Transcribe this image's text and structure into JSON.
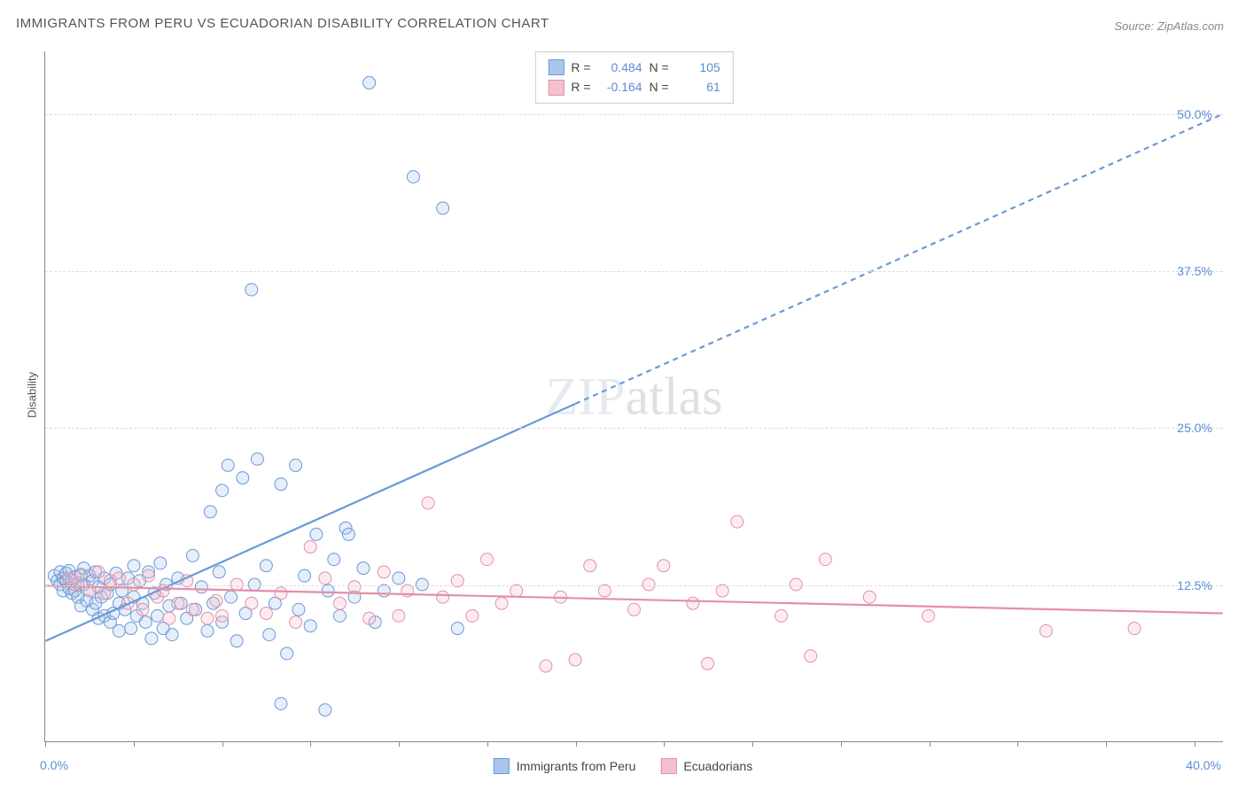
{
  "title": "IMMIGRANTS FROM PERU VS ECUADORIAN DISABILITY CORRELATION CHART",
  "source": "Source: ZipAtlas.com",
  "watermark": {
    "zip": "ZIP",
    "atlas": "atlas"
  },
  "y_axis": {
    "label": "Disability"
  },
  "chart": {
    "type": "scatter",
    "background_color": "#ffffff",
    "grid_color": "#dddddd",
    "axis_color": "#888888",
    "tick_label_color": "#5b8dd6",
    "tick_label_fontsize": 14,
    "xlim": [
      0,
      40
    ],
    "ylim": [
      0,
      55
    ],
    "x_origin_label": "0.0%",
    "x_max_label": "40.0%",
    "x_tick_positions": [
      0,
      3,
      6,
      9,
      12,
      15,
      18,
      21,
      24,
      27,
      30,
      33,
      36,
      39
    ],
    "y_ticks": [
      {
        "value": 12.5,
        "label": "12.5%"
      },
      {
        "value": 25.0,
        "label": "25.0%"
      },
      {
        "value": 37.5,
        "label": "37.5%"
      },
      {
        "value": 50.0,
        "label": "50.0%"
      }
    ],
    "marker_radius": 7,
    "marker_stroke_width": 1,
    "marker_fill_opacity": 0.3,
    "trend_line_width": 2.2,
    "trend_dash_pattern": "6 5"
  },
  "series": [
    {
      "id": "peru",
      "label": "Immigrants from Peru",
      "color_stroke": "#6a9ad6",
      "color_fill": "#a9c6ea",
      "R": "0.484",
      "N": "105",
      "trend": {
        "x1": 0,
        "y1": 8.0,
        "x2": 40,
        "y2": 50.0,
        "solid_until_x": 18
      },
      "points": [
        [
          0.3,
          13.2
        ],
        [
          0.4,
          12.8
        ],
        [
          0.5,
          13.5
        ],
        [
          0.5,
          12.5
        ],
        [
          0.6,
          13.0
        ],
        [
          0.6,
          12.0
        ],
        [
          0.7,
          12.8
        ],
        [
          0.7,
          13.4
        ],
        [
          0.8,
          12.2
        ],
        [
          0.8,
          13.6
        ],
        [
          0.9,
          11.8
        ],
        [
          0.9,
          12.9
        ],
        [
          1.0,
          13.1
        ],
        [
          1.0,
          12.0
        ],
        [
          1.1,
          12.6
        ],
        [
          1.1,
          11.5
        ],
        [
          1.2,
          13.3
        ],
        [
          1.2,
          10.8
        ],
        [
          1.3,
          12.5
        ],
        [
          1.3,
          13.8
        ],
        [
          1.4,
          11.2
        ],
        [
          1.5,
          12.0
        ],
        [
          1.5,
          13.2
        ],
        [
          1.6,
          10.5
        ],
        [
          1.6,
          12.8
        ],
        [
          1.7,
          11.0
        ],
        [
          1.7,
          13.5
        ],
        [
          1.8,
          9.8
        ],
        [
          1.8,
          12.3
        ],
        [
          1.9,
          11.5
        ],
        [
          2.0,
          10.0
        ],
        [
          2.0,
          13.0
        ],
        [
          2.1,
          11.8
        ],
        [
          2.2,
          9.5
        ],
        [
          2.2,
          12.5
        ],
        [
          2.3,
          10.2
        ],
        [
          2.4,
          13.4
        ],
        [
          2.5,
          11.0
        ],
        [
          2.5,
          8.8
        ],
        [
          2.6,
          12.0
        ],
        [
          2.7,
          10.5
        ],
        [
          2.8,
          13.0
        ],
        [
          2.9,
          9.0
        ],
        [
          3.0,
          11.5
        ],
        [
          3.0,
          14.0
        ],
        [
          3.1,
          10.0
        ],
        [
          3.2,
          12.8
        ],
        [
          3.3,
          11.0
        ],
        [
          3.4,
          9.5
        ],
        [
          3.5,
          13.5
        ],
        [
          3.6,
          8.2
        ],
        [
          3.7,
          11.8
        ],
        [
          3.8,
          10.0
        ],
        [
          3.9,
          14.2
        ],
        [
          4.0,
          9.0
        ],
        [
          4.1,
          12.5
        ],
        [
          4.2,
          10.8
        ],
        [
          4.3,
          8.5
        ],
        [
          4.5,
          13.0
        ],
        [
          4.6,
          11.0
        ],
        [
          4.8,
          9.8
        ],
        [
          5.0,
          14.8
        ],
        [
          5.1,
          10.5
        ],
        [
          5.3,
          12.3
        ],
        [
          5.5,
          8.8
        ],
        [
          5.6,
          18.3
        ],
        [
          5.7,
          11.0
        ],
        [
          5.9,
          13.5
        ],
        [
          6.0,
          20.0
        ],
        [
          6.0,
          9.5
        ],
        [
          6.2,
          22.0
        ],
        [
          6.3,
          11.5
        ],
        [
          6.5,
          8.0
        ],
        [
          6.7,
          21.0
        ],
        [
          6.8,
          10.2
        ],
        [
          7.0,
          36.0
        ],
        [
          7.1,
          12.5
        ],
        [
          7.2,
          22.5
        ],
        [
          7.5,
          14.0
        ],
        [
          7.6,
          8.5
        ],
        [
          7.8,
          11.0
        ],
        [
          8.0,
          20.5
        ],
        [
          8.0,
          3.0
        ],
        [
          8.2,
          7.0
        ],
        [
          8.5,
          22.0
        ],
        [
          8.6,
          10.5
        ],
        [
          8.8,
          13.2
        ],
        [
          9.0,
          9.2
        ],
        [
          9.2,
          16.5
        ],
        [
          9.5,
          2.5
        ],
        [
          9.6,
          12.0
        ],
        [
          9.8,
          14.5
        ],
        [
          10.0,
          10.0
        ],
        [
          10.2,
          17.0
        ],
        [
          10.3,
          16.5
        ],
        [
          10.5,
          11.5
        ],
        [
          10.8,
          13.8
        ],
        [
          11.0,
          52.5
        ],
        [
          11.2,
          9.5
        ],
        [
          11.5,
          12.0
        ],
        [
          12.0,
          13.0
        ],
        [
          12.5,
          45.0
        ],
        [
          12.8,
          12.5
        ],
        [
          13.5,
          42.5
        ],
        [
          14.0,
          9.0
        ]
      ]
    },
    {
      "id": "ecuador",
      "label": "Ecuadorians",
      "color_stroke": "#e38fa8",
      "color_fill": "#f4c0ce",
      "R": "-0.164",
      "N": "61",
      "trend": {
        "x1": 0,
        "y1": 12.4,
        "x2": 40,
        "y2": 10.2,
        "solid_until_x": 40
      },
      "points": [
        [
          0.8,
          13.0
        ],
        [
          1.0,
          12.5
        ],
        [
          1.2,
          13.2
        ],
        [
          1.5,
          12.0
        ],
        [
          1.8,
          13.5
        ],
        [
          2.0,
          11.8
        ],
        [
          2.2,
          12.8
        ],
        [
          2.5,
          13.0
        ],
        [
          2.8,
          11.0
        ],
        [
          3.0,
          12.5
        ],
        [
          3.3,
          10.5
        ],
        [
          3.5,
          13.2
        ],
        [
          3.8,
          11.5
        ],
        [
          4.0,
          12.0
        ],
        [
          4.2,
          9.8
        ],
        [
          4.5,
          11.0
        ],
        [
          4.8,
          12.8
        ],
        [
          5.0,
          10.5
        ],
        [
          5.5,
          9.8
        ],
        [
          5.8,
          11.2
        ],
        [
          6.0,
          10.0
        ],
        [
          6.5,
          12.5
        ],
        [
          7.0,
          11.0
        ],
        [
          7.5,
          10.2
        ],
        [
          8.0,
          11.8
        ],
        [
          8.5,
          9.5
        ],
        [
          9.0,
          15.5
        ],
        [
          9.5,
          13.0
        ],
        [
          10.0,
          11.0
        ],
        [
          10.5,
          12.3
        ],
        [
          11.0,
          9.8
        ],
        [
          11.5,
          13.5
        ],
        [
          12.0,
          10.0
        ],
        [
          12.3,
          12.0
        ],
        [
          13.0,
          19.0
        ],
        [
          13.5,
          11.5
        ],
        [
          14.0,
          12.8
        ],
        [
          14.5,
          10.0
        ],
        [
          15.0,
          14.5
        ],
        [
          15.5,
          11.0
        ],
        [
          16.0,
          12.0
        ],
        [
          17.0,
          6.0
        ],
        [
          17.5,
          11.5
        ],
        [
          18.0,
          6.5
        ],
        [
          18.5,
          14.0
        ],
        [
          19.0,
          12.0
        ],
        [
          20.0,
          10.5
        ],
        [
          20.5,
          12.5
        ],
        [
          21.0,
          14.0
        ],
        [
          22.0,
          11.0
        ],
        [
          22.5,
          6.2
        ],
        [
          23.0,
          12.0
        ],
        [
          23.5,
          17.5
        ],
        [
          25.0,
          10.0
        ],
        [
          25.5,
          12.5
        ],
        [
          26.0,
          6.8
        ],
        [
          26.5,
          14.5
        ],
        [
          28.0,
          11.5
        ],
        [
          30.0,
          10.0
        ],
        [
          34.0,
          8.8
        ],
        [
          37.0,
          9.0
        ]
      ]
    }
  ],
  "stat_legend_labels": {
    "R": "R =",
    "N": "N ="
  },
  "series_legend_label_peru": "Immigrants from Peru",
  "series_legend_label_ecuador": "Ecuadorians"
}
